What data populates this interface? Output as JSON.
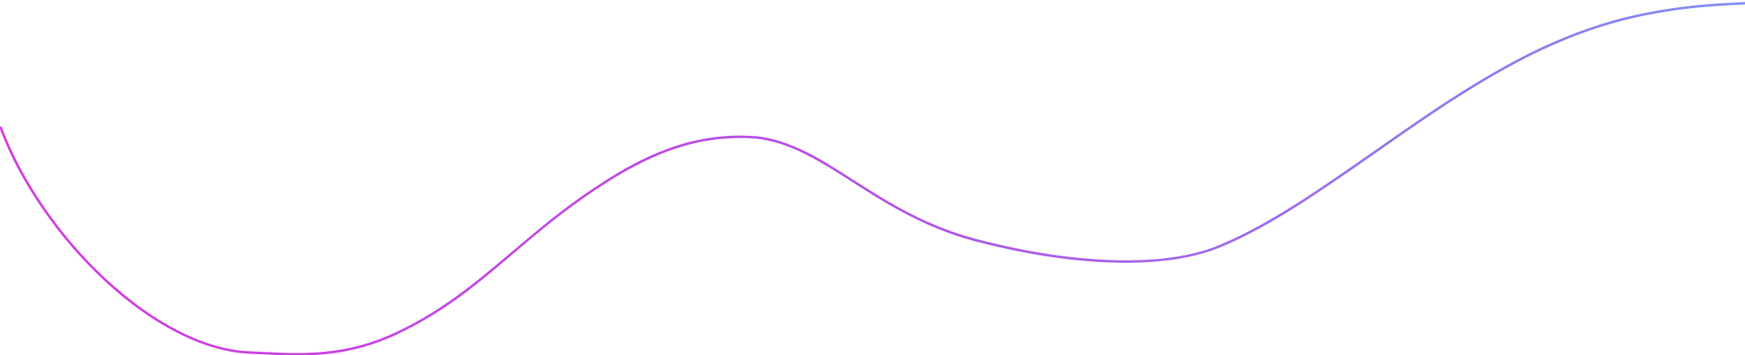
{
  "colors": {
    "background": "#ffffff",
    "gradient_start": "#d53be0",
    "gradient_mid": "#b450e8",
    "gradient_end": "#7f8df0"
  },
  "decoration": {
    "shape": "wave-line"
  }
}
